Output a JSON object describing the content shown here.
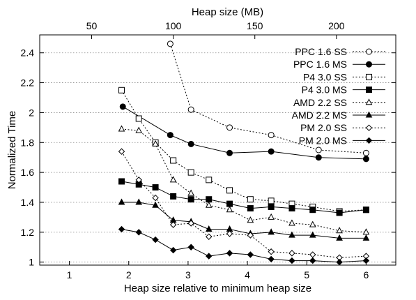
{
  "chart_data": {
    "type": "line",
    "xlabel": "Heap size relative to minimum heap size",
    "ylabel": "Normalized Time",
    "x2label": "Heap size (MB)",
    "xlim": [
      0.5,
      6.5
    ],
    "ylim": [
      0.98,
      2.52
    ],
    "x_ticks": [
      1,
      2,
      3,
      4,
      5,
      6
    ],
    "y_ticks": [
      1,
      1.2,
      1.4,
      1.6,
      1.8,
      2,
      2.2,
      2.4
    ],
    "y_tick_labels": [
      "1",
      "1.2",
      "1.4",
      "1.6",
      "1.8",
      "2",
      "2.2",
      "2.4"
    ],
    "x2_ticks": [
      {
        "value": 50,
        "x": 1.375
      },
      {
        "value": 100,
        "x": 2.75
      },
      {
        "value": 150,
        "x": 4.125
      },
      {
        "value": 200,
        "x": 5.5
      }
    ],
    "grid": "horizontal dotted",
    "legend_position": "top-right",
    "series": [
      {
        "name": "PPC 1.6 SS",
        "marker": "circle-open",
        "dash": true,
        "x": [
          2.7,
          3.05,
          3.7,
          4.4,
          5.2,
          6.0
        ],
        "y": [
          2.46,
          2.02,
          1.9,
          1.85,
          1.75,
          1.73
        ]
      },
      {
        "name": "PPC 1.6 MS",
        "marker": "circle-filled",
        "dash": false,
        "x": [
          1.9,
          2.7,
          3.05,
          3.7,
          4.4,
          5.2,
          6.0
        ],
        "y": [
          2.04,
          1.85,
          1.79,
          1.73,
          1.74,
          1.7,
          1.69
        ]
      },
      {
        "name": "P4 3.0 SS",
        "marker": "square-open",
        "dash": true,
        "x": [
          1.88,
          2.17,
          2.45,
          2.75,
          3.05,
          3.35,
          3.7,
          4.05,
          4.4,
          4.75,
          5.1,
          5.55,
          6.0
        ],
        "y": [
          2.15,
          1.96,
          1.8,
          1.68,
          1.6,
          1.55,
          1.48,
          1.42,
          1.41,
          1.39,
          1.37,
          1.34,
          1.35
        ]
      },
      {
        "name": "P4 3.0 MS",
        "marker": "square-filled",
        "dash": false,
        "x": [
          1.88,
          2.17,
          2.45,
          2.75,
          3.05,
          3.35,
          3.7,
          4.05,
          4.4,
          4.75,
          5.1,
          5.55,
          6.0
        ],
        "y": [
          1.54,
          1.52,
          1.5,
          1.44,
          1.42,
          1.42,
          1.39,
          1.36,
          1.37,
          1.36,
          1.35,
          1.33,
          1.35
        ]
      },
      {
        "name": "AMD 2.2 SS",
        "marker": "triangle-open",
        "dash": true,
        "x": [
          1.88,
          2.17,
          2.45,
          2.75,
          3.05,
          3.35,
          3.7,
          4.05,
          4.4,
          4.75,
          5.1,
          5.55,
          6.0
        ],
        "y": [
          1.89,
          1.88,
          1.79,
          1.55,
          1.46,
          1.38,
          1.35,
          1.28,
          1.3,
          1.26,
          1.25,
          1.21,
          1.2
        ]
      },
      {
        "name": "AMD 2.2 MS",
        "marker": "triangle-filled",
        "dash": false,
        "x": [
          1.88,
          2.17,
          2.45,
          2.75,
          3.05,
          3.35,
          3.7,
          4.05,
          4.4,
          4.75,
          5.1,
          5.55,
          6.0
        ],
        "y": [
          1.4,
          1.4,
          1.38,
          1.28,
          1.27,
          1.22,
          1.22,
          1.19,
          1.2,
          1.18,
          1.18,
          1.16,
          1.16
        ]
      },
      {
        "name": "PM 2.0 SS",
        "marker": "diamond-open",
        "dash": true,
        "x": [
          1.88,
          2.17,
          2.45,
          2.75,
          3.05,
          3.35,
          3.7,
          4.05,
          4.4,
          4.75,
          5.1,
          5.55,
          6.0
        ],
        "y": [
          1.74,
          1.55,
          1.43,
          1.25,
          1.26,
          1.17,
          1.19,
          1.18,
          1.07,
          1.06,
          1.05,
          1.03,
          1.04
        ]
      },
      {
        "name": "PM 2.0 MS",
        "marker": "diamond-filled",
        "dash": false,
        "x": [
          1.88,
          2.17,
          2.45,
          2.75,
          3.05,
          3.35,
          3.7,
          4.05,
          4.4,
          4.75,
          5.1,
          5.55,
          6.0
        ],
        "y": [
          1.22,
          1.2,
          1.15,
          1.08,
          1.1,
          1.04,
          1.06,
          1.05,
          1.02,
          1.01,
          1.01,
          1.0,
          1.01
        ]
      }
    ]
  }
}
